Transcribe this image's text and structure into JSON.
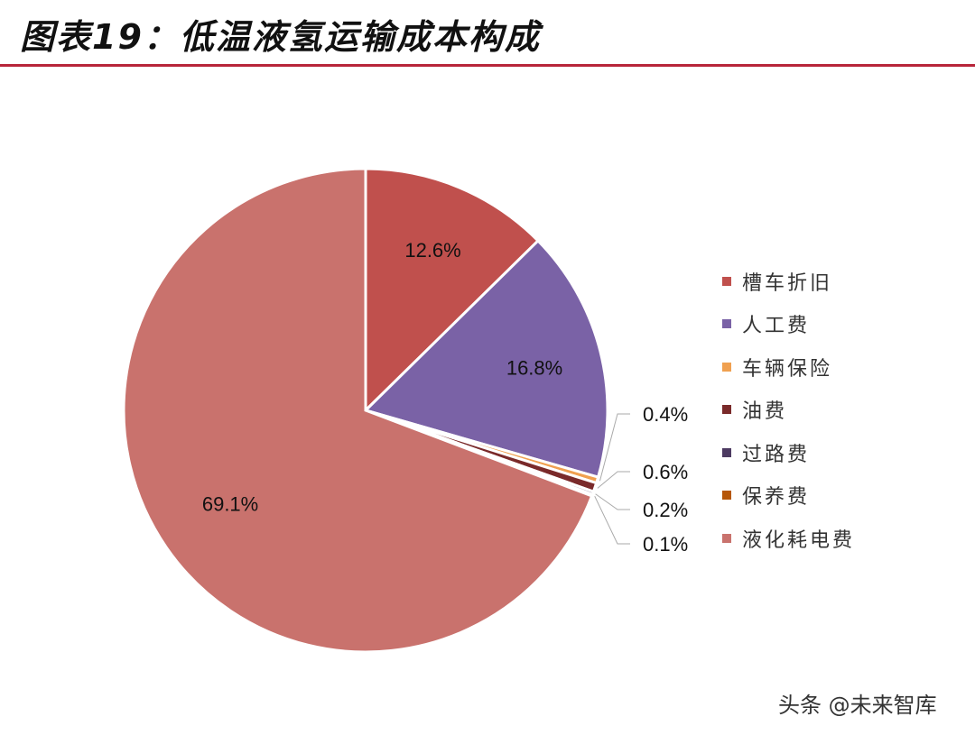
{
  "title": "图表19：低温液氢运输成本构成",
  "watermark": "头条 @未来智库",
  "chart_data": {
    "type": "pie",
    "title": "",
    "start_angle": "12 o'clock, clockwise",
    "legend_position": "right",
    "slices": [
      {
        "name": "槽车折旧",
        "value": 12.6,
        "label": "12.6%",
        "color": "#c0504d"
      },
      {
        "name": "人工费",
        "value": 16.8,
        "label": "16.8%",
        "color": "#7a62a6"
      },
      {
        "name": "车辆保险",
        "value": 0.4,
        "label": "0.4%",
        "color": "#f0a050"
      },
      {
        "name": "油费",
        "value": 0.6,
        "label": "0.6%",
        "color": "#7a2a2a"
      },
      {
        "name": "过路费",
        "value": 0.2,
        "label": "0.2%",
        "color": "#4d3b62"
      },
      {
        "name": "保养费",
        "value": 0.1,
        "label": "0.1%",
        "color": "#b65708"
      },
      {
        "name": "液化耗电费",
        "value": 69.1,
        "label": "69.1%",
        "color": "#c9726d"
      }
    ]
  }
}
